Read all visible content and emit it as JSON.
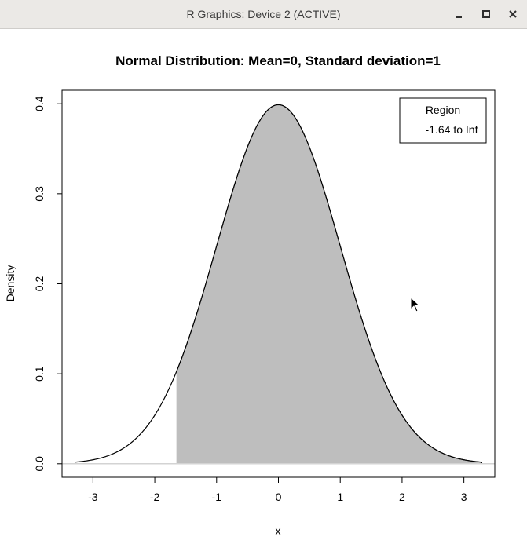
{
  "window": {
    "title": "R Graphics: Device 2 (ACTIVE)",
    "controls": [
      "minimize",
      "maximize",
      "close"
    ]
  },
  "chart_data": {
    "type": "area",
    "title": "Normal Distribution:  Mean=0, Standard deviation=1",
    "xlabel": "x",
    "ylabel": "Density",
    "xlim": [
      -3.5,
      3.5
    ],
    "ylim": [
      -0.015,
      0.415
    ],
    "x_ticks": [
      -3,
      -2,
      -1,
      0,
      1,
      2,
      3
    ],
    "x_tick_labels": [
      "-3",
      "-2",
      "-1",
      "0",
      "1",
      "2",
      "3"
    ],
    "y_ticks": [
      0.0,
      0.1,
      0.2,
      0.3,
      0.4
    ],
    "y_tick_labels": [
      "0.0",
      "0.1",
      "0.2",
      "0.3",
      "0.4"
    ],
    "curve": {
      "distribution": "normal",
      "mean": 0,
      "sd": 1,
      "x_range": [
        -3.29,
        3.29
      ]
    },
    "shaded_region": {
      "from": -1.64,
      "to": 3.29,
      "fill": "#bebebe"
    },
    "legend": {
      "title": "Region",
      "entries": [
        "-1.64 to Inf"
      ],
      "placement": "top-right"
    },
    "grid": false,
    "baseline_color": "#d3d3d3"
  }
}
